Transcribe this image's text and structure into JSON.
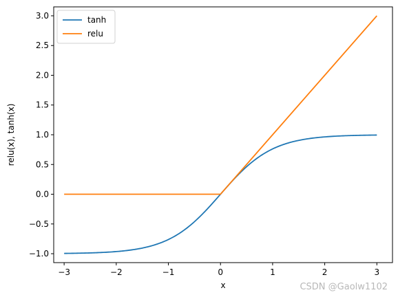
{
  "chart_data": {
    "type": "line",
    "xlabel": "x",
    "ylabel": "relu(x), tanh(x)",
    "xlim": [
      -3.2,
      3.3
    ],
    "ylim": [
      -1.15,
      3.15
    ],
    "xticks": [
      -3,
      -2,
      -1,
      0,
      1,
      2,
      3
    ],
    "xtick_labels": [
      "−3",
      "−2",
      "−1",
      "0",
      "1",
      "2",
      "3"
    ],
    "yticks": [
      -1.0,
      -0.5,
      0.0,
      0.5,
      1.0,
      1.5,
      2.0,
      2.5,
      3.0
    ],
    "ytick_labels": [
      "−1.0",
      "−0.5",
      "0.0",
      "0.5",
      "1.0",
      "1.5",
      "2.0",
      "2.5",
      "3.0"
    ],
    "grid": false,
    "legend_position": "top-left",
    "series": [
      {
        "name": "tanh",
        "color": "#1f77b4",
        "x": [
          -3.0,
          -2.5,
          -2.0,
          -1.5,
          -1.0,
          -0.75,
          -0.5,
          -0.25,
          0.0,
          0.25,
          0.5,
          0.75,
          1.0,
          1.5,
          2.0,
          2.5,
          3.0
        ],
        "y": [
          -0.995,
          -0.987,
          -0.964,
          -0.905,
          -0.762,
          -0.635,
          -0.462,
          -0.245,
          0.0,
          0.245,
          0.462,
          0.635,
          0.762,
          0.905,
          0.964,
          0.987,
          0.995
        ]
      },
      {
        "name": "relu",
        "color": "#ff7f0e",
        "x": [
          -3.0,
          -2.0,
          -1.0,
          0.0,
          1.0,
          2.0,
          3.0
        ],
        "y": [
          0.0,
          0.0,
          0.0,
          0.0,
          1.0,
          2.0,
          3.0
        ]
      }
    ]
  },
  "watermark": "CSDN @Gaolw1102"
}
